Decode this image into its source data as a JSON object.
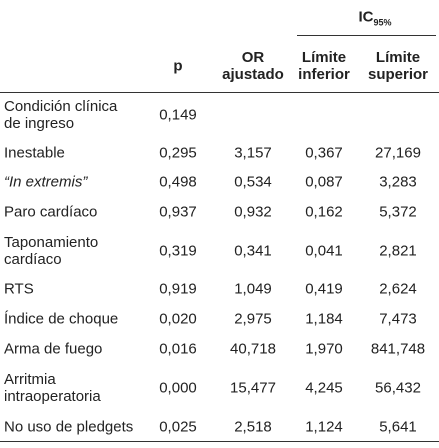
{
  "header": {
    "group": {
      "text": "IC",
      "sub": "95%"
    },
    "columns": [
      [
        "p"
      ],
      [
        "OR",
        "ajustado"
      ],
      [
        "Límite",
        "inferior"
      ],
      [
        "Límite",
        "superior"
      ]
    ]
  },
  "table": {
    "rows": [
      {
        "label": [
          "Condición clínica",
          "de ingreso"
        ],
        "values": [
          "0,149"
        ]
      },
      {
        "label": [
          "Inestable"
        ],
        "values": [
          "0,295",
          "3,157",
          "0,367",
          "27,169"
        ]
      },
      {
        "label": [
          "“In extremis”"
        ],
        "italic": true,
        "values": [
          "0,498",
          "0,534",
          "0,087",
          "3,283"
        ]
      },
      {
        "label": [
          "Paro cardíaco"
        ],
        "values": [
          "0,937",
          "0,932",
          "0,162",
          "5,372"
        ]
      },
      {
        "label": [
          "Taponamiento",
          "cardíaco"
        ],
        "values": [
          "0,319",
          "0,341",
          "0,041",
          "2,821"
        ]
      },
      {
        "label": [
          "RTS"
        ],
        "values": [
          "0,919",
          "1,049",
          "0,419",
          "2,624"
        ]
      },
      {
        "label": [
          "Índice de choque"
        ],
        "values": [
          "0,020",
          "2,975",
          "1,184",
          "7,473"
        ]
      },
      {
        "label": [
          "Arma de fuego"
        ],
        "values": [
          "0,016",
          "40,718",
          "1,970",
          "841,748"
        ]
      },
      {
        "label": [
          "Arritmia",
          "intraoperatoria"
        ],
        "values": [
          "0,000",
          "15,477",
          "4,245",
          "56,432"
        ]
      },
      {
        "label": [
          "No uso de pledgets"
        ],
        "values": [
          "0,025",
          "2,518",
          "1,124",
          "5,641"
        ]
      }
    ]
  }
}
